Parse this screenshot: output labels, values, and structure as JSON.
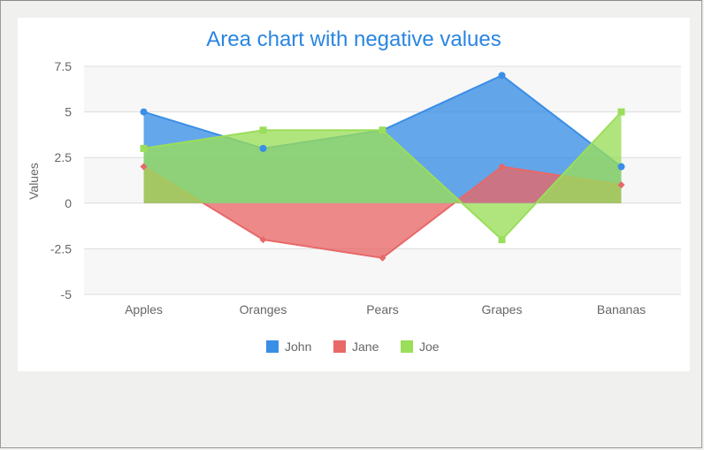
{
  "chart_data": {
    "type": "area",
    "title": "Area chart with negative values",
    "xlabel": "",
    "ylabel": "Values",
    "categories": [
      "Apples",
      "Oranges",
      "Pears",
      "Grapes",
      "Bananas"
    ],
    "ylim": [
      -5,
      7.5
    ],
    "yticks": [
      7.5,
      5,
      2.5,
      0,
      -2.5,
      -5
    ],
    "ytick_labels": [
      "7.5",
      "5",
      "2.5",
      "0",
      "-2.5",
      "-5"
    ],
    "grid": true,
    "legend_position": "bottom",
    "series": [
      {
        "name": "John",
        "values": [
          5,
          3,
          4,
          7,
          2
        ],
        "color": "#3a8ee6",
        "marker": "circle"
      },
      {
        "name": "Jane",
        "values": [
          2,
          -2,
          -3,
          2,
          1
        ],
        "color": "#e86868",
        "marker": "diamond"
      },
      {
        "name": "Joe",
        "values": [
          3,
          4,
          4,
          -2,
          5
        ],
        "color": "#9ade5a",
        "marker": "square"
      }
    ]
  }
}
